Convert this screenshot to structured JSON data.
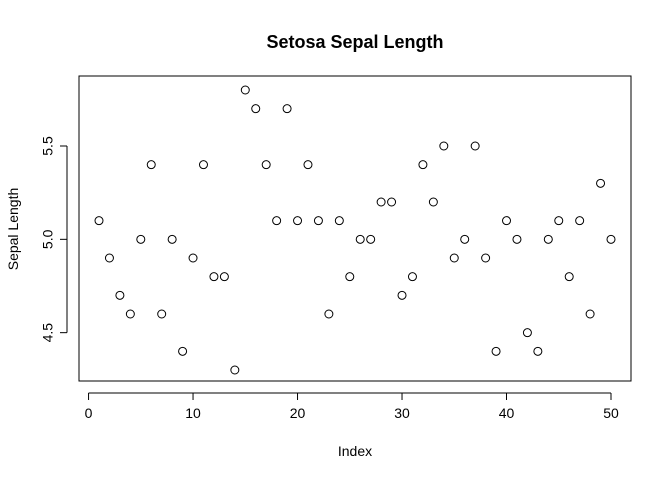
{
  "chart_data": {
    "type": "scatter",
    "title": "Setosa Sepal Length",
    "xlabel": "Index",
    "ylabel": "Sepal Length",
    "xlim": [
      0,
      51
    ],
    "ylim": [
      4.3,
      5.8
    ],
    "x_ticks": [
      0,
      10,
      20,
      30,
      40,
      50
    ],
    "y_ticks": [
      4.5,
      5.0,
      5.5
    ],
    "x_tick_labels": [
      "0",
      "10",
      "20",
      "30",
      "40",
      "50"
    ],
    "y_tick_labels": [
      "4.5",
      "5.0",
      "5.5"
    ],
    "grid": false,
    "legend": "none",
    "marker": "open-circle",
    "point_color": "#000000",
    "x": [
      1,
      2,
      3,
      4,
      5,
      6,
      7,
      8,
      9,
      10,
      11,
      12,
      13,
      14,
      15,
      16,
      17,
      18,
      19,
      20,
      21,
      22,
      23,
      24,
      25,
      26,
      27,
      28,
      29,
      30,
      31,
      32,
      33,
      34,
      35,
      36,
      37,
      38,
      39,
      40,
      41,
      42,
      43,
      44,
      45,
      46,
      47,
      48,
      49,
      50
    ],
    "y": [
      5.1,
      4.9,
      4.7,
      4.6,
      5.0,
      5.4,
      4.6,
      5.0,
      4.4,
      4.9,
      5.4,
      4.8,
      4.8,
      4.3,
      5.8,
      5.7,
      5.4,
      5.1,
      5.7,
      5.1,
      5.4,
      5.1,
      4.6,
      5.1,
      4.8,
      5.0,
      5.0,
      5.2,
      5.2,
      4.7,
      4.8,
      5.4,
      5.2,
      5.5,
      4.9,
      5.0,
      5.5,
      4.9,
      4.4,
      5.1,
      5.0,
      4.5,
      4.4,
      5.0,
      5.1,
      4.8,
      5.1,
      4.6,
      5.3,
      5.0
    ]
  }
}
